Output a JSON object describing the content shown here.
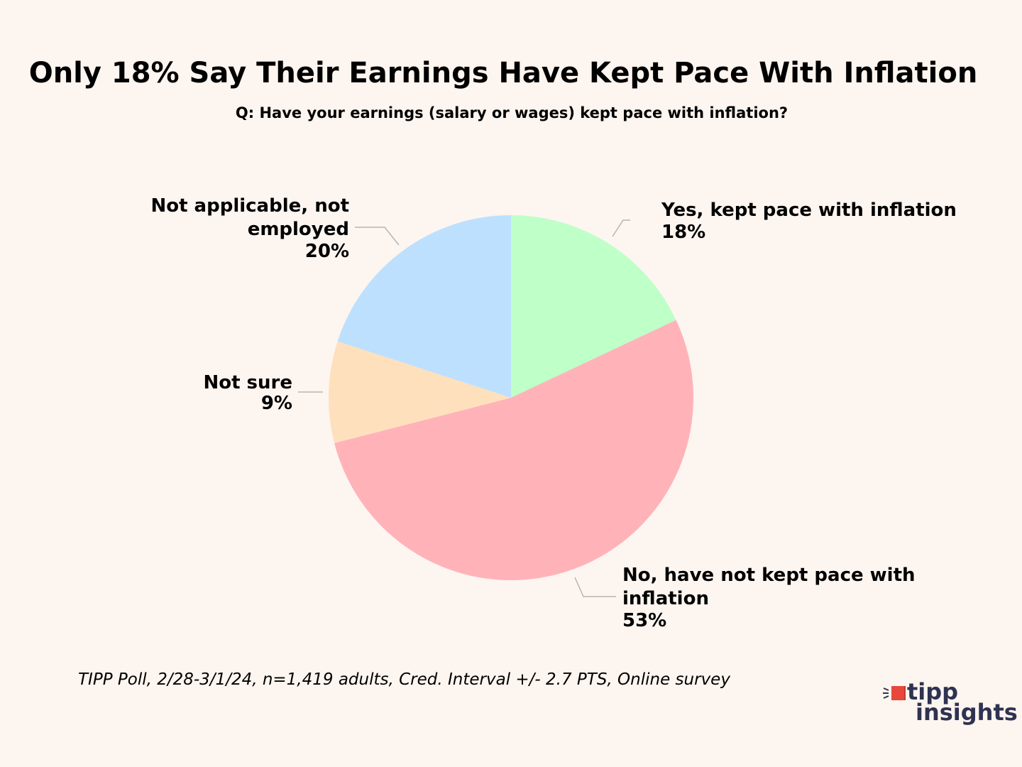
{
  "chart_data": {
    "type": "pie",
    "title": "Only 18% Say Their Earnings Have Kept Pace With Inflation",
    "subtitle": "Q: Have your earnings (salary or wages) kept pace with inflation?",
    "slices": [
      {
        "label": "Yes, kept pace with inflation",
        "value": 18,
        "value_label": "18%",
        "color": "#bfffc8"
      },
      {
        "label": "No, have not kept pace with inflation",
        "value": 53,
        "value_label": "53%",
        "color": "#ffb3b9"
      },
      {
        "label": "Not sure",
        "value": 9,
        "value_label": "9%",
        "color": "#ffe0bd"
      },
      {
        "label": "Not applicable, not employed",
        "value": 20,
        "value_label": "20%",
        "color": "#bde0ff"
      }
    ],
    "start_angle": "12 o'clock",
    "direction": "clockwise"
  },
  "footer": {
    "source": "TIPP Poll, 2/28-3/1/24, n=1,419 adults, Cred. Interval +/- 2.7 PTS, Online survey"
  },
  "logo": {
    "line1": "tipp",
    "line2": "insights",
    "accent_color": "#e8473b",
    "text_color": "#2f3250"
  }
}
